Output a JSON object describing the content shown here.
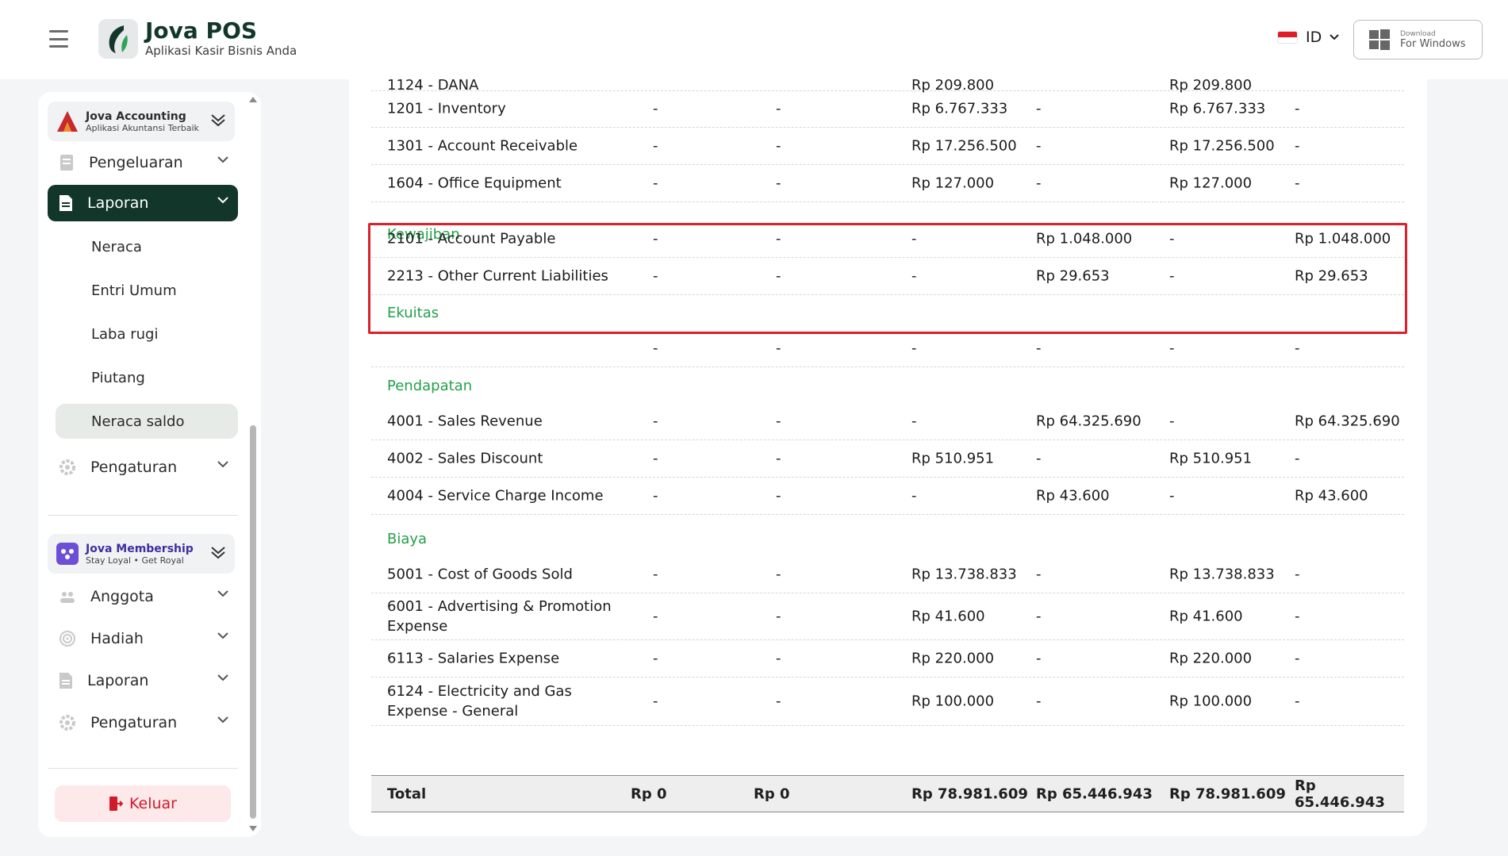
{
  "header": {
    "brand_title": "Jova POS",
    "brand_subtitle": "Aplikasi Kasir Bisnis Anda",
    "language_code": "ID",
    "download_small": "Download",
    "download_big": "For Windows"
  },
  "sidebar": {
    "accounting_app": {
      "name": "Jova Accounting",
      "tagline": "Aplikasi Akuntansi Terbaik"
    },
    "menu": [
      {
        "label": "Pengeluaran",
        "icon": "receipt-icon"
      },
      {
        "label": "Laporan",
        "icon": "document-icon",
        "active": true
      },
      {
        "label": "Pengaturan",
        "icon": "settings-icon"
      }
    ],
    "laporan_subitems": [
      "Neraca",
      "Entri Umum",
      "Laba rugi",
      "Piutang",
      "Neraca saldo"
    ],
    "selected_subitem": "Neraca saldo",
    "membership_app": {
      "name": "Jova Membership",
      "tagline": "Stay Loyal • Get Royal"
    },
    "membership_menu": [
      {
        "label": "Anggota",
        "icon": "users-icon"
      },
      {
        "label": "Hadiah",
        "icon": "target-icon"
      },
      {
        "label": "Laporan",
        "icon": "document-icon"
      },
      {
        "label": "Pengaturan",
        "icon": "settings-icon"
      }
    ],
    "logout_label": "Keluar"
  },
  "table": {
    "partial_top_row": {
      "name": "1124 - DANA",
      "v3": "Rp 209.800",
      "v5": "Rp 209.800"
    },
    "sections": [
      {
        "title": "",
        "rows": [
          {
            "name": "1201 - Inventory",
            "c": [
              "-",
              "-",
              "Rp 6.767.333",
              "-",
              "Rp 6.767.333",
              "-"
            ]
          },
          {
            "name": "1301 - Account Receivable",
            "c": [
              "-",
              "-",
              "Rp 17.256.500",
              "-",
              "Rp 17.256.500",
              "-"
            ]
          },
          {
            "name": "1604 - Office Equipment",
            "c": [
              "-",
              "-",
              "Rp 127.000",
              "-",
              "Rp 127.000",
              "-"
            ]
          }
        ]
      },
      {
        "title": "Kewajiban",
        "rows": [
          {
            "name": "2101 - Account Payable",
            "c": [
              "-",
              "-",
              "-",
              "Rp 1.048.000",
              "-",
              "Rp 1.048.000"
            ]
          },
          {
            "name": "2213 - Other Current Liabilities",
            "c": [
              "-",
              "-",
              "-",
              "Rp 29.653",
              "-",
              "Rp 29.653"
            ]
          }
        ]
      },
      {
        "title": "Ekuitas",
        "rows": [
          {
            "name": "",
            "c": [
              "-",
              "-",
              "-",
              "-",
              "-",
              "-"
            ]
          }
        ]
      },
      {
        "title": "Pendapatan",
        "rows": [
          {
            "name": "4001 - Sales Revenue",
            "c": [
              "-",
              "-",
              "-",
              "Rp 64.325.690",
              "-",
              "Rp 64.325.690"
            ]
          },
          {
            "name": "4002 - Sales Discount",
            "c": [
              "-",
              "-",
              "Rp 510.951",
              "-",
              "Rp 510.951",
              "-"
            ]
          },
          {
            "name": "4004 - Service Charge Income",
            "c": [
              "-",
              "-",
              "-",
              "Rp 43.600",
              "-",
              "Rp 43.600"
            ]
          }
        ]
      },
      {
        "title": "Biaya",
        "rows": [
          {
            "name": "5001 - Cost of Goods Sold",
            "c": [
              "-",
              "-",
              "Rp 13.738.833",
              "-",
              "Rp 13.738.833",
              "-"
            ]
          },
          {
            "name": "6001 - Advertising & Promotion Expense",
            "c": [
              "-",
              "-",
              "Rp 41.600",
              "-",
              "Rp 41.600",
              "-"
            ]
          },
          {
            "name": "6113 - Salaries Expense",
            "c": [
              "-",
              "-",
              "Rp 220.000",
              "-",
              "Rp 220.000",
              "-"
            ]
          },
          {
            "name": "6124 - Electricity and Gas Expense - General",
            "c": [
              "-",
              "-",
              "Rp 100.000",
              "-",
              "Rp 100.000",
              "-"
            ]
          }
        ]
      }
    ],
    "total": {
      "label": "Total",
      "c": [
        "Rp 0",
        "Rp 0",
        "Rp 78.981.609",
        "Rp 65.446.943",
        "Rp 78.981.609",
        "Rp 65.446.943"
      ]
    }
  },
  "colors": {
    "brand_dark": "#12372a",
    "section_green": "#23a04a",
    "highlight_red": "#d9222a",
    "logout_red": "#d11b2a"
  }
}
